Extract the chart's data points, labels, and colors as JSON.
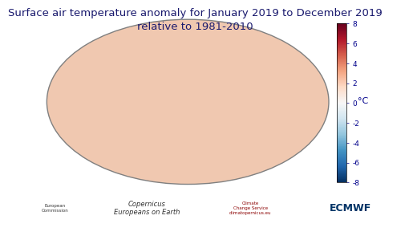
{
  "title_line1": "Surface air temperature anomaly for January 2019 to December 2019",
  "title_line2": "relative to 1981-2010",
  "title_fontsize": 9.5,
  "title_color": "#1a1a6e",
  "colorbar_label": "°C",
  "colorbar_ticks": [
    8,
    6,
    4,
    2,
    0,
    -2,
    -4,
    -6,
    -8
  ],
  "colorbar_vmin": -8,
  "colorbar_vmax": 8,
  "background_color": "#ffffff",
  "map_background": "#d0e8f0",
  "ocean_color": "#f0c8b0",
  "footer_color": "#ffffff",
  "border_color": "#808080",
  "colorbar_colors": [
    "#67001f",
    "#b2182b",
    "#d6604d",
    "#f4a582",
    "#fddbc7",
    "#ffffff",
    "#d1e5f0",
    "#92c5de",
    "#4393c3",
    "#2166ac",
    "#053061"
  ]
}
